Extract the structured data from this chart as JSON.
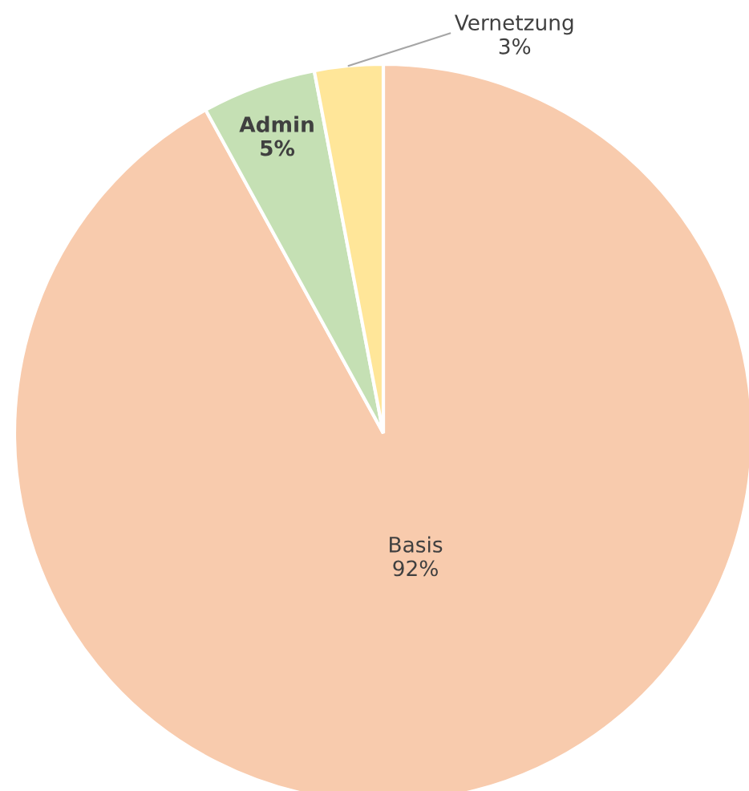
{
  "chart_data": {
    "type": "pie",
    "categories": [
      "Basis",
      "Admin",
      "Vernetzung"
    ],
    "values": [
      92,
      5,
      3
    ],
    "value_labels": [
      "92%",
      "5%",
      "3%"
    ],
    "colors": [
      "#f8cbad",
      "#c5e0b4",
      "#ffe699"
    ]
  }
}
